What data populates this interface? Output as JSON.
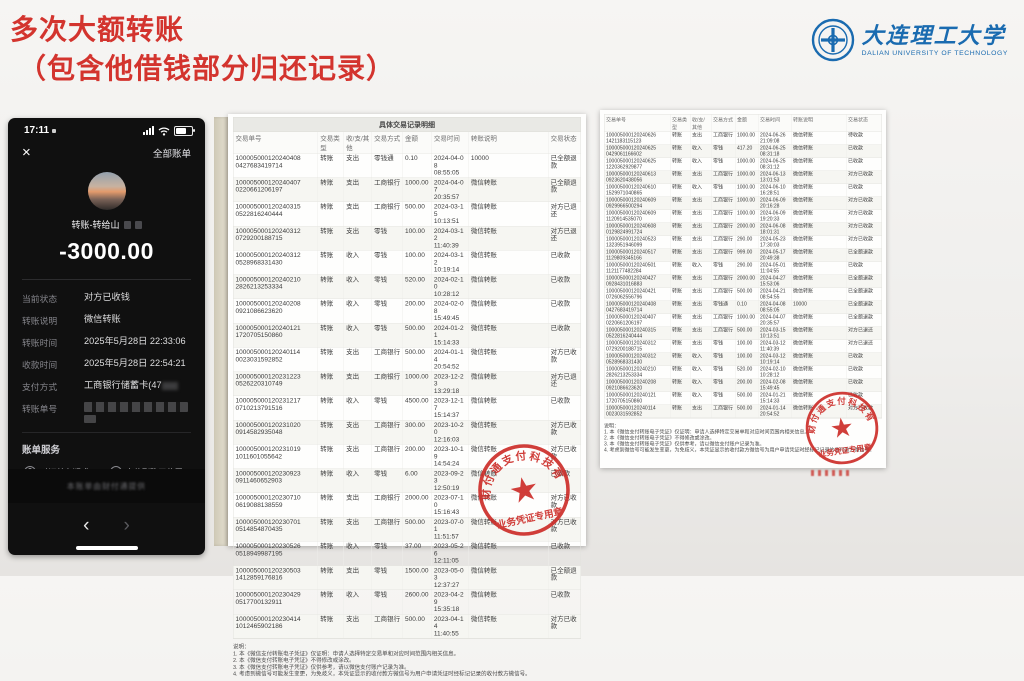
{
  "slide": {
    "title_line1": "多次大额转账",
    "title_line2": "（包含他借钱部分归还记录）"
  },
  "colors": {
    "title_red": "#d3342e",
    "logo_blue": "#1a6bb0",
    "stamp_red": "#cc2a26"
  },
  "logo": {
    "cn": "大连理工大学",
    "en": "DALIAN UNIVERSITY OF TECHNOLOGY"
  },
  "phone": {
    "status_time": "17:11",
    "close_label": "×",
    "all_bills": "全部账单",
    "transfer_label": "转账-转给山",
    "amount": "-3000.00",
    "fields": [
      {
        "label": "当前状态",
        "value": "对方已收钱"
      },
      {
        "label": "转账说明",
        "value": "微信转账"
      },
      {
        "label": "转账时间",
        "value": "2025年5月28日 22:33:06"
      },
      {
        "label": "收款时间",
        "value": "2025年5月28日 22:54:21"
      },
      {
        "label": "支付方式",
        "value": "工商银行储蓄卡(47",
        "blurred_tail": true
      },
      {
        "label": "转账单号",
        "value": "",
        "redacted": true
      }
    ],
    "services_title": "账单服务",
    "services": [
      {
        "icon": "question-circle-icon",
        "glyph": "?",
        "label": "对订单有疑惑"
      },
      {
        "icon": "locate-chat-icon",
        "glyph": "⌖",
        "label": "定位到聊天位置"
      },
      {
        "icon": "e-receipt-icon",
        "glyph": "◉",
        "label": "申请转账电子凭证"
      },
      {
        "icon": "transfer-history-icon",
        "glyph": "⇄",
        "label": "查看往来转账"
      }
    ],
    "footer_note": "本账单由财付通提供",
    "nav_back": "‹",
    "nav_forward": "›"
  },
  "doc1": {
    "title": "具体交易记录明细",
    "headers": [
      "交易单号",
      "交易类型",
      "收/支/其他",
      "交易方式",
      "金额",
      "交易时间",
      "转账说明",
      "交易状态"
    ],
    "rows": [
      [
        "100005000120240408\n0427683419714",
        "转账",
        "支出",
        "零钱通",
        "0.10",
        "2024-04-08\n08:55:05",
        "10000",
        "已全额退款"
      ],
      [
        "100005000120240407\n0220661206197",
        "转账",
        "支出",
        "工商银行",
        "1000.00",
        "2024-04-07\n20:35:57",
        "微信转账",
        "已全额退款"
      ],
      [
        "100005000120240315\n0522816240444",
        "转账",
        "支出",
        "工商银行",
        "500.00",
        "2024-03-15\n10:13:51",
        "微信转账",
        "对方已退还"
      ],
      [
        "100005000120240312\n0729200188715",
        "转账",
        "支出",
        "零钱",
        "100.00",
        "2024-03-12\n11:40:39",
        "微信转账",
        "对方已退还"
      ],
      [
        "100005000120240312\n0528968331430",
        "转账",
        "收入",
        "零钱",
        "100.00",
        "2024-03-12\n10:19:14",
        "微信转账",
        "已收款"
      ],
      [
        "100005000120240210\n2826213253334",
        "转账",
        "收入",
        "零钱",
        "520.00",
        "2024-02-10\n10:28:12",
        "微信转账",
        "已收款"
      ],
      [
        "100005000120240208\n0921086623620",
        "转账",
        "收入",
        "零钱",
        "200.00",
        "2024-02-08\n15:49:45",
        "微信转账",
        "已收款"
      ],
      [
        "100005000120240121\n1720705150860",
        "转账",
        "收入",
        "零钱",
        "500.00",
        "2024-01-21\n15:14:33",
        "微信转账",
        "已收款"
      ],
      [
        "100005000120240114\n0023031592852",
        "转账",
        "支出",
        "工商银行",
        "500.00",
        "2024-01-14\n20:54:52",
        "微信转账",
        "对方已收款"
      ],
      [
        "100005000120231223\n0526220310749",
        "转账",
        "支出",
        "工商银行",
        "1000.00",
        "2023-12-23\n13:29:18",
        "微信转账",
        "对方已退还"
      ],
      [
        "100005000120231217\n0710213791516",
        "转账",
        "收入",
        "零钱",
        "4500.00",
        "2023-12-17\n15:14:37",
        "微信转账",
        "已收款"
      ],
      [
        "100005000120231020\n0914582935048",
        "转账",
        "支出",
        "工商银行",
        "300.00",
        "2023-10-20\n12:16:03",
        "微信转账",
        "对方已收款"
      ],
      [
        "100005000120231019\n1011601055642",
        "转账",
        "支出",
        "工商银行",
        "200.00",
        "2023-10-19\n14:54:24",
        "微信转账",
        "对方已收款"
      ],
      [
        "100005000120230923\n0911460652903",
        "转账",
        "收入",
        "零钱",
        "6.00",
        "2023-09-23\n12:50:19",
        "微信转账",
        "已收款"
      ],
      [
        "100005000120230710\n0619088138559",
        "转账",
        "支出",
        "工商银行",
        "2000.00",
        "2023-07-10\n15:16:43",
        "微信转账",
        "对方已收款"
      ],
      [
        "100005000120230701\n0514854870435",
        "转账",
        "支出",
        "工商银行",
        "500.00",
        "2023-07-01\n11:51:57",
        "微信转账",
        "对方已收款"
      ],
      [
        "100005000120230526\n0518949987195",
        "转账",
        "收入",
        "零钱",
        "37.00",
        "2023-05-26\n12:11:05",
        "微信转账",
        "已收款"
      ],
      [
        "100005000120230503\n1412859176816",
        "转账",
        "支出",
        "零钱",
        "1500.00",
        "2023-05-03\n12:37:27",
        "微信转账",
        "已全额退款"
      ],
      [
        "100005000120230429\n0517700132911",
        "转账",
        "收入",
        "零钱",
        "2600.00",
        "2023-04-29\n15:35:18",
        "微信转账",
        "已收款"
      ],
      [
        "100005000120230414\n1012465902186",
        "转账",
        "支出",
        "工商银行",
        "500.00",
        "2023-04-14\n11:40:55",
        "微信转账",
        "对方已收款"
      ]
    ],
    "notes_title": "说明：",
    "notes": [
      "1. 本《微信支付转账电子凭证》仅证明：申请人选择特定交易单和对应时间范围内相关信息。",
      "2. 本《微信支付转账电子凭证》不得修改或涂改。",
      "3. 本《微信支付转账电子凭证》仅供参考，请以微信支付账户记录为准。",
      "4. 考虑到微信号可能发生变更，为免歧义，本凭证显示的收付款方微信号为用户申请凭证时经标记记录的收付款方微信号。"
    ],
    "stamp": {
      "company": "财付通支付科技有限公司",
      "label": "业务凭证专用章"
    }
  },
  "doc2": {
    "headers": [
      "交易单号",
      "交易类型",
      "收/支/其他",
      "交易方式",
      "金额",
      "交易时间",
      "转账说明",
      "交易状态"
    ],
    "rows": [
      [
        "100005000120240626\n1421183115123",
        "转账",
        "支出",
        "工商银行",
        "1000.00",
        "2024-06-26\n21:09:08",
        "微信转账",
        "待收款"
      ],
      [
        "100005000120240625\n0429061166602",
        "转账",
        "收入",
        "零钱",
        "417.20",
        "2024-06-25\n08:31:18",
        "微信转账",
        "已收款"
      ],
      [
        "100005000120240625\n1220362929877",
        "转账",
        "收入",
        "零钱",
        "1000.00",
        "2024-06-25\n08:31:12",
        "微信转账",
        "已收款"
      ],
      [
        "100005000120240613\n0923620438056",
        "转账",
        "支出",
        "工商银行",
        "1000.00",
        "2024-06-13\n13:01:53",
        "微信转账",
        "对方已收款"
      ],
      [
        "100005000120240610\n1529971040865",
        "转账",
        "收入",
        "零钱",
        "1000.00",
        "2024-06-10\n16:28:51",
        "微信转账",
        "已收款"
      ],
      [
        "100005000120240609\n0929966500294",
        "转账",
        "支出",
        "工商银行",
        "1000.00",
        "2024-06-09\n20:16:28",
        "微信转账",
        "对方已收款"
      ],
      [
        "100005000120240609\n1120914535070",
        "转账",
        "支出",
        "工商银行",
        "1000.00",
        "2024-06-09\n19:20:33",
        "微信转账",
        "对方已收款"
      ],
      [
        "100005000120240608\n0129824991724",
        "转账",
        "支出",
        "工商银行",
        "2000.00",
        "2024-06-08\n18:01:31",
        "微信转账",
        "对方已收款"
      ],
      [
        "100005000120240523\n1323951946099",
        "转账",
        "支出",
        "工商银行",
        "290.00",
        "2024-05-23\n17:30:03",
        "微信转账",
        "对方已收款"
      ],
      [
        "100005000120240517\n1129809345166",
        "转账",
        "支出",
        "工商银行",
        "999.00",
        "2024-05-17\n20:49:38",
        "微信转账",
        "已全额退款"
      ],
      [
        "100005000120240501\n1121177482284",
        "转账",
        "收入",
        "零钱",
        "290.00",
        "2024-05-01\n11:04:55",
        "微信转账",
        "已收款"
      ],
      [
        "100005000120240427\n0928431016883",
        "转账",
        "支出",
        "工商银行",
        "2000.00",
        "2024-04-27\n15:53:06",
        "微信转账",
        "已全额退款"
      ],
      [
        "100005000120240421\n0726062556796",
        "转账",
        "支出",
        "工商银行",
        "500.00",
        "2024-04-21\n08:54:55",
        "微信转账",
        "已全额退款"
      ],
      [
        "100005000120240408\n0427683419714",
        "转账",
        "支出",
        "零钱通",
        "0.10",
        "2024-04-08\n08:55:05",
        "10000",
        "已全额退款"
      ],
      [
        "100005000120240407\n0220661206197",
        "转账",
        "支出",
        "工商银行",
        "1000.00",
        "2024-04-07\n20:35:57",
        "微信转账",
        "已全额退款"
      ],
      [
        "100005000120240315\n0522816240444",
        "转账",
        "支出",
        "工商银行",
        "500.00",
        "2024-03-15\n10:13:51",
        "微信转账",
        "对方已退还"
      ],
      [
        "100005000120240312\n0729200188715",
        "转账",
        "支出",
        "零钱",
        "100.00",
        "2024-03-12\n11:40:39",
        "微信转账",
        "对方已退还"
      ],
      [
        "100005000120240312\n0528968331430",
        "转账",
        "收入",
        "零钱",
        "100.00",
        "2024-03-12\n10:19:14",
        "微信转账",
        "已收款"
      ],
      [
        "100005000120240210\n2826213253334",
        "转账",
        "收入",
        "零钱",
        "520.00",
        "2024-02-10\n10:28:12",
        "微信转账",
        "已收款"
      ],
      [
        "100005000120240208\n0921086623620",
        "转账",
        "收入",
        "零钱",
        "200.00",
        "2024-02-08\n15:49:45",
        "微信转账",
        "已收款"
      ],
      [
        "100005000120240121\n1720705150860",
        "转账",
        "收入",
        "零钱",
        "500.00",
        "2024-01-21\n15:14:33",
        "微信转账",
        "已收款"
      ],
      [
        "100005000120240114\n0023031592852",
        "转账",
        "支出",
        "工商银行",
        "500.00",
        "2024-01-14\n20:54:52",
        "微信转账",
        "对方已收款"
      ]
    ],
    "notes_title": "说明：",
    "notes": [
      "1. 本《微信支付转账电子凭证》仅证明：申请人选择特定交易单和对应时间范围内相关信息。",
      "2. 本《微信支付转账电子凭证》不得修改或涂改。",
      "3. 本《微信支付转账电子凭证》仅供参考，请以微信支付账户记录为准。",
      "4. 考虑到微信号可能发生变更，为免歧义，本凭证显示的收付款方微信号为用户申请凭证时经标记记录的收付款方微信号。"
    ],
    "stamp": {
      "company": "财付通支付科技有限公司",
      "label": "业务凭证专用章"
    }
  }
}
